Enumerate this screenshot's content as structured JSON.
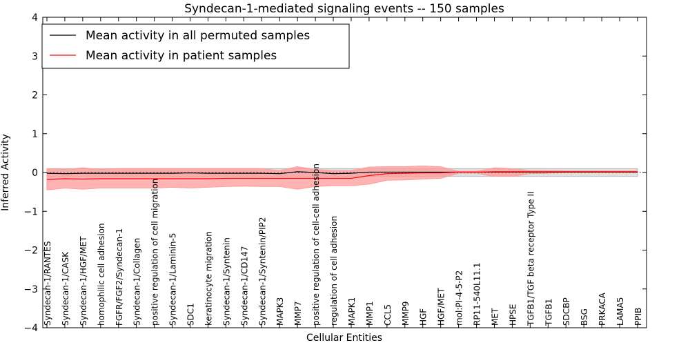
{
  "chart_data": {
    "type": "line",
    "title": "Syndecan-1-mediated signaling events -- 150 samples",
    "xlabel": "Cellular Entities",
    "ylabel": "Inferred Activity",
    "ylim": [
      -4,
      4
    ],
    "yticks": [
      -4,
      -3,
      -2,
      -1,
      0,
      1,
      2,
      3,
      4
    ],
    "ytick_labels": [
      "−4",
      "−3",
      "−2",
      "−1",
      "0",
      "1",
      "2",
      "3",
      "4"
    ],
    "legend_position": "upper-left",
    "categories": [
      "Syndecan-1/RANTES",
      "Syndecan-1/CASK",
      "Syndecan-1/HGF/MET",
      "homophilic cell adhesion",
      "FGFR/FGF2/Syndecan-1",
      "Syndecan-1/Collagen",
      "positive regulation of cell migration",
      "Syndecan-1/Laminin-5",
      "SDC1",
      "keratinocyte migration",
      "Syndecan-1/Syntenin",
      "Syndecan-1/CD147",
      "Syndecan-1/Syntenin/PIP2",
      "MAPK3",
      "MMP7",
      "positive regulation of cell-cell adhesion",
      "regulation of cell adhesion",
      "MAPK1",
      "MMP1",
      "CCL5",
      "MMP9",
      "HGF",
      "HGF/MET",
      "mol:PI-4-5-P2",
      "RP11-540L11.1",
      "MET",
      "HPSE",
      "TGFB1/TGF beta receptor Type II",
      "TGFB1",
      "SDCBP",
      "BSG",
      "PRKACA",
      "LAMA5",
      "PPIB"
    ],
    "series": [
      {
        "name": "Mean activity in all permuted samples",
        "color": "#000000",
        "band_color": "#bbbbbb",
        "values": [
          -0.02,
          -0.03,
          -0.02,
          -0.02,
          -0.02,
          -0.02,
          -0.02,
          -0.02,
          -0.01,
          -0.02,
          -0.02,
          -0.02,
          -0.02,
          -0.03,
          0.02,
          0.0,
          -0.03,
          -0.02,
          0.01,
          0.01,
          0.01,
          0.01,
          0.01,
          0.01,
          0.01,
          0.01,
          0.01,
          0.01,
          0.01,
          0.01,
          0.01,
          0.01,
          0.01,
          0.01
        ],
        "upper": [
          0.1,
          0.1,
          0.1,
          0.1,
          0.1,
          0.1,
          0.1,
          0.1,
          0.1,
          0.1,
          0.1,
          0.1,
          0.1,
          0.1,
          0.1,
          0.1,
          0.1,
          0.1,
          0.1,
          0.1,
          0.1,
          0.1,
          0.1,
          0.1,
          0.1,
          0.1,
          0.1,
          0.1,
          0.1,
          0.1,
          0.1,
          0.1,
          0.1,
          0.1
        ],
        "lower": [
          -0.1,
          -0.1,
          -0.1,
          -0.1,
          -0.1,
          -0.1,
          -0.1,
          -0.1,
          -0.1,
          -0.1,
          -0.1,
          -0.1,
          -0.1,
          -0.1,
          -0.1,
          -0.1,
          -0.1,
          -0.1,
          -0.1,
          -0.1,
          -0.1,
          -0.1,
          -0.1,
          -0.1,
          -0.1,
          -0.1,
          -0.1,
          -0.1,
          -0.1,
          -0.1,
          -0.1,
          -0.1,
          -0.1,
          -0.1
        ]
      },
      {
        "name": "Mean activity in patient samples",
        "color": "#ff0000",
        "band_color": "#ff9999",
        "values": [
          -0.18,
          -0.16,
          -0.17,
          -0.16,
          -0.16,
          -0.16,
          -0.16,
          -0.16,
          -0.16,
          -0.16,
          -0.15,
          -0.15,
          -0.15,
          -0.15,
          -0.15,
          -0.15,
          -0.15,
          -0.15,
          -0.08,
          -0.03,
          -0.02,
          -0.01,
          -0.01,
          0.01,
          0.01,
          0.02,
          0.02,
          0.02,
          0.02,
          0.02,
          0.02,
          0.02,
          0.02,
          0.02
        ],
        "upper": [
          0.1,
          0.08,
          0.12,
          0.08,
          0.1,
          0.1,
          0.1,
          0.1,
          0.1,
          0.1,
          0.1,
          0.1,
          0.1,
          0.05,
          0.15,
          0.08,
          0.05,
          0.05,
          0.14,
          0.15,
          0.15,
          0.17,
          0.15,
          0.03,
          0.03,
          0.12,
          0.1,
          0.05,
          0.05,
          0.04,
          0.04,
          0.04,
          0.04,
          0.04
        ],
        "lower": [
          -0.45,
          -0.4,
          -0.43,
          -0.4,
          -0.4,
          -0.4,
          -0.4,
          -0.38,
          -0.4,
          -0.38,
          -0.36,
          -0.35,
          -0.36,
          -0.36,
          -0.43,
          -0.36,
          -0.34,
          -0.34,
          -0.3,
          -0.2,
          -0.19,
          -0.17,
          -0.15,
          -0.02,
          -0.02,
          -0.1,
          -0.1,
          -0.03,
          -0.02,
          0.0,
          0.0,
          0.0,
          0.0,
          0.0
        ]
      }
    ]
  }
}
